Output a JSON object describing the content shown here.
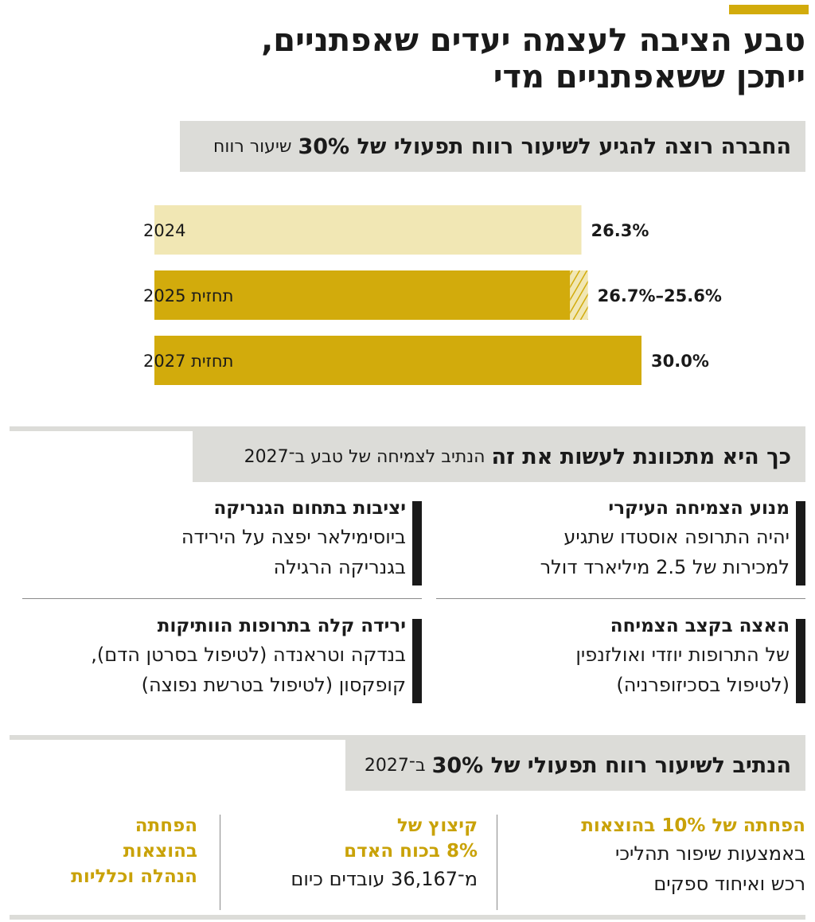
{
  "title_line1": "טבע הציבה לעצמה יעדים שאפתניים,",
  "title_line2": "ייתכן ששאפתניים מדי",
  "section1": {
    "bold": "החברה רוצה להגיע לשיעור רווח תפעולי של 30%",
    "light": "שיעור רווח"
  },
  "chart_data": {
    "type": "bar",
    "orientation": "horizontal",
    "categories": [
      "2024",
      "תחזית 2025",
      "תחזית 2027"
    ],
    "values": [
      26.3,
      25.6,
      30.0
    ],
    "range_2025": [
      25.6,
      26.7
    ],
    "labels": [
      "26.3%",
      "26.7%–25.6%",
      "30.0%"
    ],
    "xlim": [
      0,
      30.0
    ],
    "colors": {
      "bar_2024": "#f1e7b4",
      "bar_forecast": "#d2ab0c",
      "hatch": "#f1e7b4"
    },
    "title": "",
    "xlabel": "",
    "ylabel": "",
    "grid": false
  },
  "section2": {
    "bold": "כך היא מתכוונת לעשות את זה",
    "light": "הנתיב לצמיחה של טבע ב־2027"
  },
  "items": [
    {
      "title": "מנוע הצמיחה העיקרי",
      "text1": "יהיה התרופה אוסטדו שתגיע",
      "text2": "למכירות של 2.5 מיליארד דולר"
    },
    {
      "title": "יציבות בתחום הגנריקה",
      "text1": "ביוסימילאר יפצה על הירידה",
      "text2": "בגנריקה הרגילה"
    },
    {
      "title": "האצה בקצב הצמיחה",
      "text1": "של התרופות יוזדי ואולזנפין",
      "text2": "(לטיפול בסכיזופרניה)"
    },
    {
      "title": "ירידה קלה בתרופות הוותיקות",
      "text1": "בנדקה וטראנדה (לטיפול בסרטן הדם),",
      "text2": "קופקסון (לטיפול בטרשת נפוצה)"
    }
  ],
  "section3": {
    "bold": "הנתיב לשיעור רווח תפעולי של 30%",
    "light": "ב־2027"
  },
  "path": [
    {
      "title1": "הפחתה של 10% בהוצאות",
      "title2": "",
      "title3": "",
      "text1": "באמצעות שיפור תהליכי",
      "text2": "רכש ואיחוד ספקים"
    },
    {
      "title1": "קיצוץ של",
      "title2": "8% בכוח האדם",
      "title3": "",
      "text1": "מ־36,167 עובדים כיום",
      "text2": ""
    },
    {
      "title1": "הפחתה",
      "title2": "בהוצאות",
      "title3": "הנהלה וכלליות",
      "text1": "",
      "text2": ""
    }
  ]
}
